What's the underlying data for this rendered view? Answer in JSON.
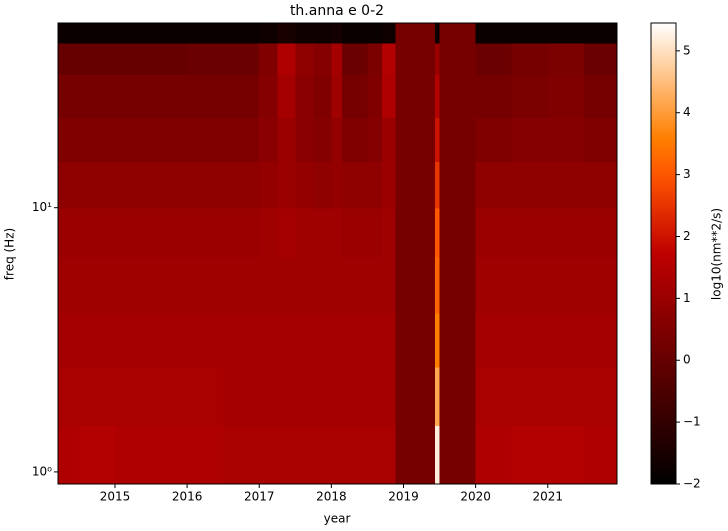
{
  "chart_data": {
    "type": "heatmap",
    "title": "th.anna e 0-2",
    "xlabel": "year",
    "ylabel": "freq (Hz)",
    "colorbar_label": "log10(nm**2/s)",
    "colormap": "gist_heat",
    "yscale": "log",
    "xlim": [
      2014.21,
      2021.96
    ],
    "xticks": [
      2015,
      2016,
      2017,
      2018,
      2019,
      2020,
      2021
    ],
    "ylim": [
      0.9,
      50
    ],
    "yticks": [
      {
        "value": 1,
        "label": "10⁰"
      },
      {
        "value": 10,
        "label": "10¹"
      }
    ],
    "clim": [
      -2,
      5.45
    ],
    "cticks": [
      {
        "value": -2,
        "label": "−2"
      },
      {
        "value": -1,
        "label": "−1"
      },
      0,
      1,
      2,
      3,
      4,
      5
    ],
    "x": [
      2014.21,
      2014.5,
      2015,
      2015.5,
      2016,
      2016.5,
      2017,
      2017.25,
      2017.5,
      2017.75,
      2018,
      2018.15,
      2018.5,
      2018.7,
      2018.89,
      2019.44,
      2019.5,
      2020.0,
      2020.5,
      2021,
      2021.5,
      2021.96
    ],
    "y": [
      0.9,
      1.5,
      2.5,
      4,
      6.5,
      10,
      15,
      22,
      32,
      42,
      50
    ],
    "z": [
      [
        1.4,
        1.5,
        1.4,
        1.4,
        1.4,
        1.3,
        1.3,
        1.3,
        1.3,
        1.3,
        1.3,
        1.3,
        1.3,
        1.3,
        0.3,
        5.2,
        0.3,
        1.4,
        1.5,
        1.5,
        1.4
      ],
      [
        1.3,
        1.3,
        1.3,
        1.3,
        1.3,
        1.2,
        1.2,
        1.2,
        1.2,
        1.2,
        1.2,
        1.2,
        1.2,
        1.2,
        0.3,
        4.2,
        0.3,
        1.3,
        1.3,
        1.3,
        1.3
      ],
      [
        1.2,
        1.2,
        1.2,
        1.2,
        1.2,
        1.2,
        1.2,
        1.2,
        1.2,
        1.2,
        1.2,
        1.2,
        1.2,
        1.2,
        0.3,
        3.6,
        0.3,
        1.2,
        1.2,
        1.2,
        1.2
      ],
      [
        1.1,
        1.1,
        1.1,
        1.1,
        1.1,
        1.1,
        1.1,
        1.1,
        1.1,
        1.1,
        1.1,
        1.1,
        1.1,
        1.1,
        0.3,
        3.2,
        0.3,
        1.1,
        1.1,
        1.1,
        1.1
      ],
      [
        1.0,
        1.0,
        1.0,
        1.0,
        1.0,
        1.0,
        1.1,
        1.2,
        1.1,
        1.1,
        1.1,
        1.0,
        1.0,
        1.1,
        0.3,
        3.0,
        0.3,
        1.0,
        1.0,
        1.0,
        1.0
      ],
      [
        0.8,
        0.8,
        0.8,
        0.8,
        0.8,
        0.8,
        0.9,
        1.0,
        0.9,
        0.8,
        0.9,
        0.8,
        0.8,
        1.0,
        0.3,
        2.5,
        0.3,
        0.8,
        0.8,
        0.8,
        0.8
      ],
      [
        0.5,
        0.5,
        0.5,
        0.5,
        0.5,
        0.5,
        0.7,
        1.0,
        0.7,
        0.6,
        0.9,
        0.5,
        0.6,
        1.0,
        0.3,
        2.0,
        0.3,
        0.5,
        0.6,
        0.6,
        0.5
      ],
      [
        0.3,
        0.3,
        0.3,
        0.3,
        0.3,
        0.3,
        0.6,
        1.2,
        0.7,
        0.5,
        1.1,
        0.3,
        0.5,
        1.4,
        0.3,
        1.5,
        0.3,
        0.3,
        0.4,
        0.5,
        0.3
      ],
      [
        0.0,
        0.0,
        0.0,
        0.0,
        0.1,
        0.1,
        0.5,
        1.4,
        0.8,
        0.6,
        1.2,
        0.1,
        0.4,
        1.5,
        0.3,
        1.0,
        0.3,
        0.1,
        0.3,
        0.4,
        0.1
      ],
      [
        -1.8,
        -1.8,
        -1.8,
        -1.8,
        -1.8,
        -1.8,
        -1.7,
        -1.5,
        -1.7,
        -1.7,
        -1.6,
        -1.8,
        -1.8,
        -1.7,
        0.3,
        -1.8,
        0.3,
        -1.8,
        -1.8,
        -1.8,
        -1.8
      ]
    ]
  }
}
